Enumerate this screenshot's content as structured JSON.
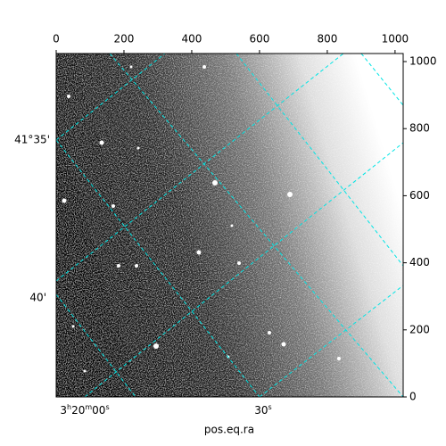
{
  "chart_data": {
    "type": "image",
    "xlabel": "pos.eq.ra",
    "xlim": [
      0,
      1024
    ],
    "xticks": [
      0,
      200,
      400,
      600,
      800,
      1000
    ],
    "ylim": [
      0,
      1024
    ],
    "yticks": [
      0,
      200,
      400,
      600,
      800,
      1000
    ],
    "ra_tick_labels": [
      "3h20m00s",
      "30s"
    ],
    "dec_tick_labels": [
      "41°35'",
      "40'"
    ],
    "grid": true,
    "grid_color": "#00e5e5"
  }
}
